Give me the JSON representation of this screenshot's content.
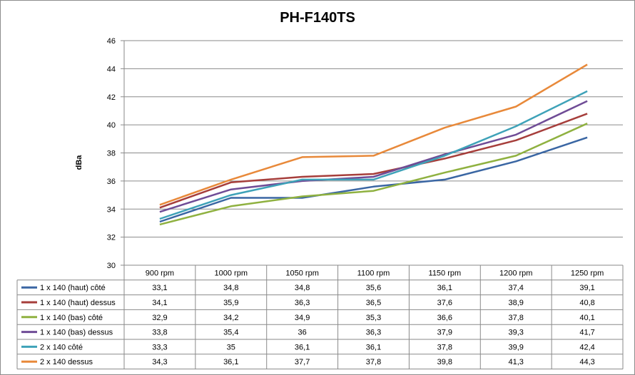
{
  "chart_data": {
    "type": "line",
    "title": "PH-F140TS",
    "ylabel": "dBa",
    "xlabel": "",
    "ylim": [
      30,
      46
    ],
    "yticks": [
      30,
      32,
      34,
      36,
      38,
      40,
      42,
      44,
      46
    ],
    "categories": [
      "900 rpm",
      "1000 rpm",
      "1050 rpm",
      "1100 rpm",
      "1150 rpm",
      "1200 rpm",
      "1250 rpm"
    ],
    "grid": "horizontal",
    "legend": "data table below chart",
    "series": [
      {
        "name": "1 x 140 (haut) côté",
        "color": "#3a66a3",
        "values": [
          33.1,
          34.8,
          34.8,
          35.6,
          36.1,
          37.4,
          39.1
        ],
        "labels": [
          "33,1",
          "34,8",
          "34,8",
          "35,6",
          "36,1",
          "37,4",
          "39,1"
        ]
      },
      {
        "name": "1 x 140 (haut) dessus",
        "color": "#a63e3b",
        "values": [
          34.1,
          35.9,
          36.3,
          36.5,
          37.6,
          38.9,
          40.8
        ],
        "labels": [
          "34,1",
          "35,9",
          "36,3",
          "36,5",
          "37,6",
          "38,9",
          "40,8"
        ]
      },
      {
        "name": "1 x 140 (bas) côté",
        "color": "#8fb140",
        "values": [
          32.9,
          34.2,
          34.9,
          35.3,
          36.6,
          37.8,
          40.1
        ],
        "labels": [
          "32,9",
          "34,2",
          "34,9",
          "35,3",
          "36,6",
          "37,8",
          "40,1"
        ]
      },
      {
        "name": "1 x 140 (bas) dessus",
        "color": "#6f4c96",
        "values": [
          33.8,
          35.4,
          36,
          36.3,
          37.9,
          39.3,
          41.7
        ],
        "labels": [
          "33,8",
          "35,4",
          "36",
          "36,3",
          "37,9",
          "39,3",
          "41,7"
        ]
      },
      {
        "name": "2 x 140 côté",
        "color": "#3ea2b8",
        "values": [
          33.3,
          35,
          36.1,
          36.1,
          37.8,
          39.9,
          42.4
        ],
        "labels": [
          "33,3",
          "35",
          "36,1",
          "36,1",
          "37,8",
          "39,9",
          "42,4"
        ]
      },
      {
        "name": "2 x 140 dessus",
        "color": "#e8893a",
        "values": [
          34.3,
          36.1,
          37.7,
          37.8,
          39.8,
          41.3,
          44.3
        ],
        "labels": [
          "34,3",
          "36,1",
          "37,7",
          "37,8",
          "39,8",
          "41,3",
          "44,3"
        ]
      }
    ]
  }
}
